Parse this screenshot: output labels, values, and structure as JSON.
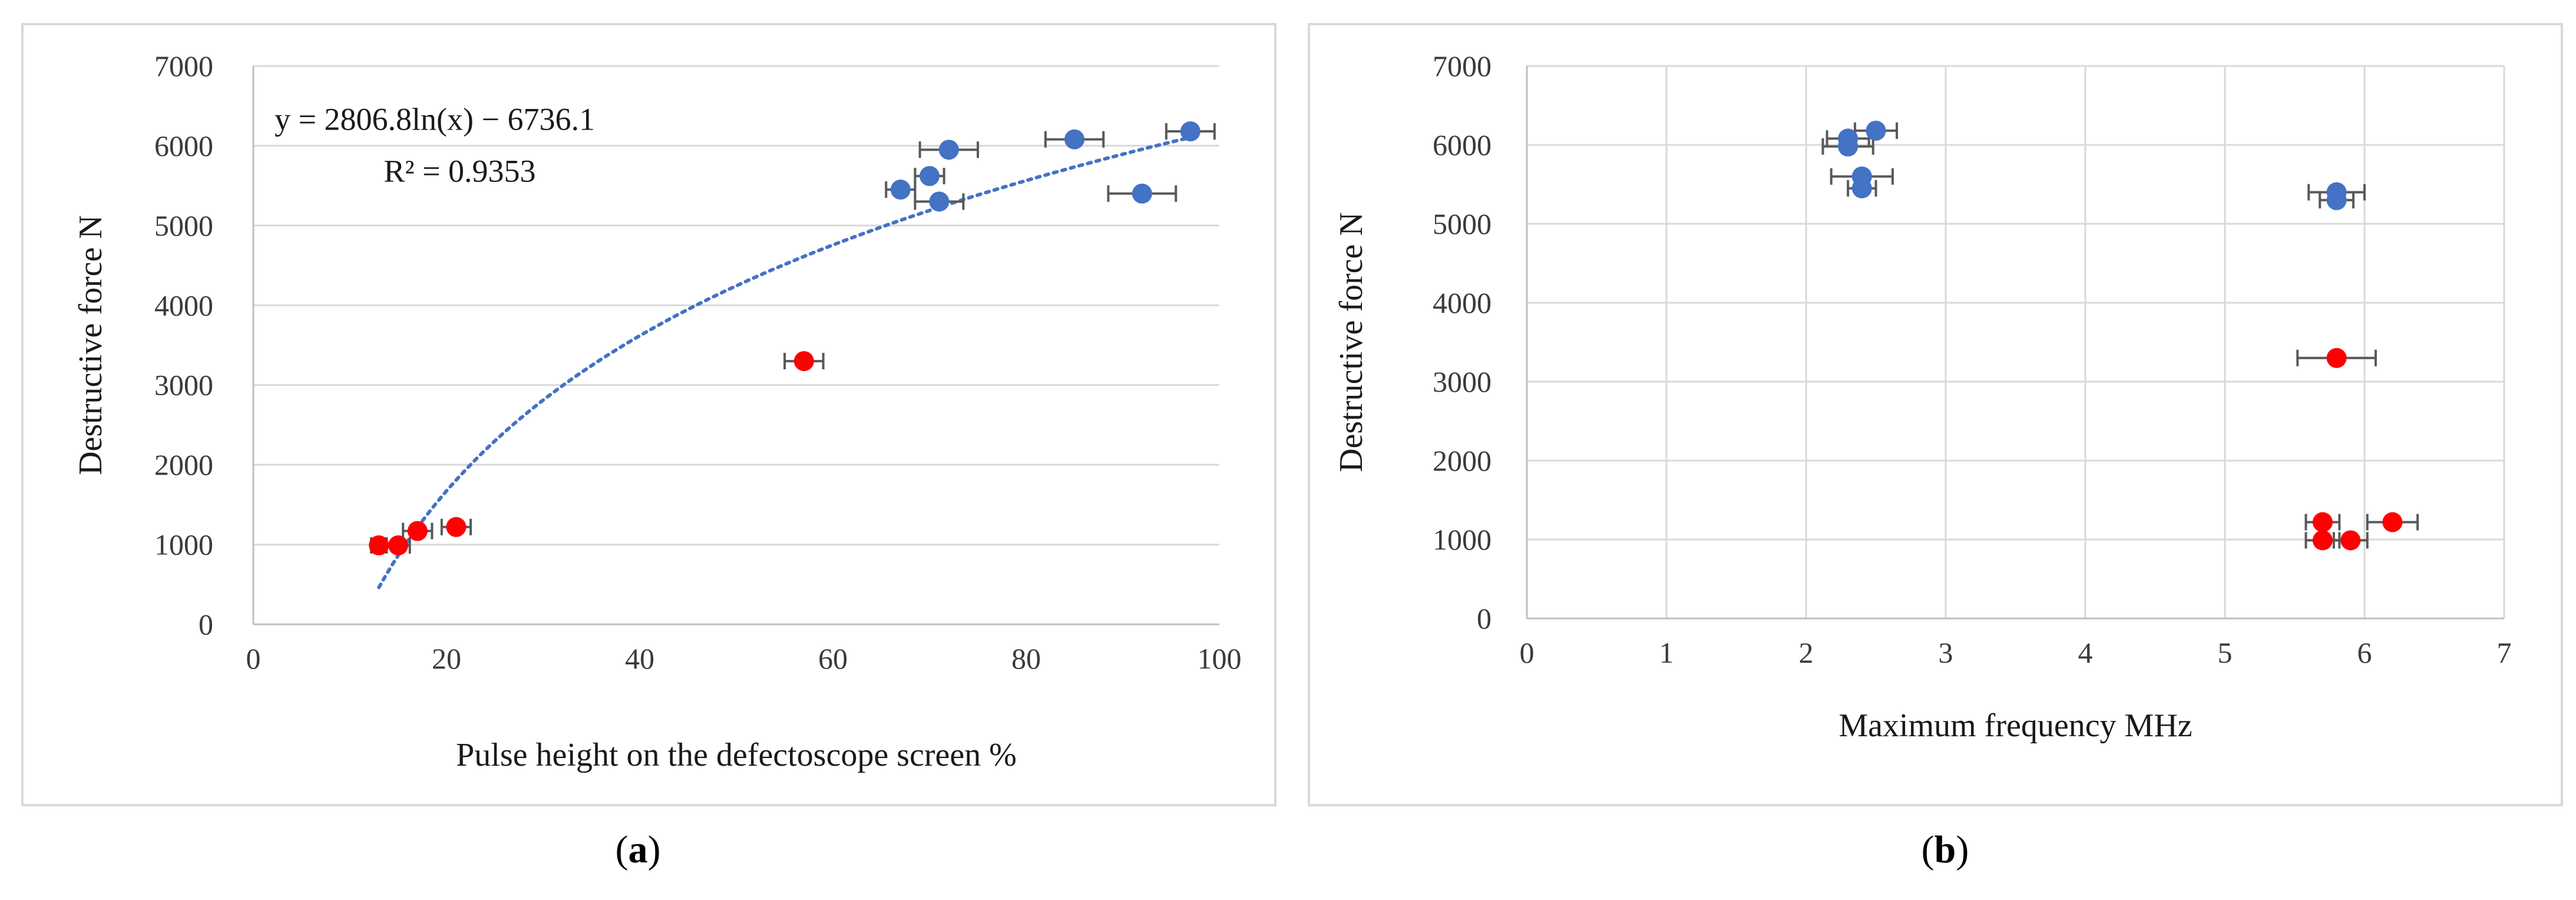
{
  "chart_data": [
    {
      "panel_label": "a",
      "type": "scatter",
      "xlabel": "Pulse height on the defectoscope screen %",
      "ylabel": "Destructive force N",
      "xlim": [
        0,
        100
      ],
      "ylim": [
        0,
        7000
      ],
      "x_ticks": [
        0,
        20,
        40,
        60,
        80,
        100
      ],
      "y_ticks": [
        0,
        1000,
        2000,
        3000,
        4000,
        5000,
        6000,
        7000
      ],
      "grid": "horizontal",
      "colors": {
        "blue": "#4472C4",
        "red": "#FF0000",
        "trend": "#4472C4",
        "errorbar": "#595959"
      },
      "series": [
        {
          "color_key": "blue",
          "points": [
            {
              "x": 97,
              "y": 6180,
              "xerr": 2.5
            },
            {
              "x": 85,
              "y": 6080,
              "xerr": 3
            },
            {
              "x": 72,
              "y": 5950,
              "xerr": 3
            },
            {
              "x": 70,
              "y": 5620,
              "xerr": 1.5
            },
            {
              "x": 67,
              "y": 5450,
              "xerr": 1.5
            },
            {
              "x": 71,
              "y": 5300,
              "xerr": 2.5
            },
            {
              "x": 92,
              "y": 5400,
              "xerr": 3.5
            }
          ]
        },
        {
          "color_key": "red",
          "points": [
            {
              "x": 57,
              "y": 3300,
              "xerr": 2
            },
            {
              "x": 21,
              "y": 1220,
              "xerr": 1.5
            },
            {
              "x": 17,
              "y": 1170,
              "xerr": 1.5
            },
            {
              "x": 15,
              "y": 990,
              "xerr": 1.2
            },
            {
              "x": 13,
              "y": 990,
              "xerr": 0.8
            }
          ]
        }
      ],
      "trendline": {
        "type": "logarithmic",
        "a": 2806.8,
        "b": -6736.1,
        "x_range": [
          13,
          97
        ],
        "equation_text": "y = 2806.8ln(x) − 6736.1",
        "r2_text": "R² = 0.9353"
      }
    },
    {
      "panel_label": "b",
      "type": "scatter",
      "xlabel": "Maximum frequency MHz",
      "ylabel": "Destructive force N",
      "xlim": [
        0,
        7
      ],
      "ylim": [
        0,
        7000
      ],
      "x_ticks": [
        0,
        1,
        2,
        3,
        4,
        5,
        6,
        7
      ],
      "y_ticks": [
        0,
        1000,
        2000,
        3000,
        4000,
        5000,
        6000,
        7000
      ],
      "grid": "both",
      "colors": {
        "blue": "#4472C4",
        "red": "#FF0000",
        "errorbar": "#595959"
      },
      "series": [
        {
          "color_key": "blue",
          "points": [
            {
              "x": 2.5,
              "y": 6180,
              "xerr": 0.15
            },
            {
              "x": 2.3,
              "y": 6080,
              "xerr": 0.15
            },
            {
              "x": 2.3,
              "y": 5980,
              "xerr": 0.18
            },
            {
              "x": 2.4,
              "y": 5600,
              "xerr": 0.22
            },
            {
              "x": 2.4,
              "y": 5450,
              "xerr": 0.1
            },
            {
              "x": 5.8,
              "y": 5400,
              "xerr": 0.2
            },
            {
              "x": 5.8,
              "y": 5300,
              "xerr": 0.12
            }
          ]
        },
        {
          "color_key": "red",
          "points": [
            {
              "x": 5.8,
              "y": 3300,
              "xerr": 0.28
            },
            {
              "x": 6.2,
              "y": 1220,
              "xerr": 0.18
            },
            {
              "x": 5.7,
              "y": 1220,
              "xerr": 0.12
            },
            {
              "x": 5.7,
              "y": 990,
              "xerr": 0.12
            },
            {
              "x": 5.9,
              "y": 990,
              "xerr": 0.12
            }
          ]
        }
      ]
    }
  ],
  "captions": {
    "a": "a",
    "b": "b"
  }
}
